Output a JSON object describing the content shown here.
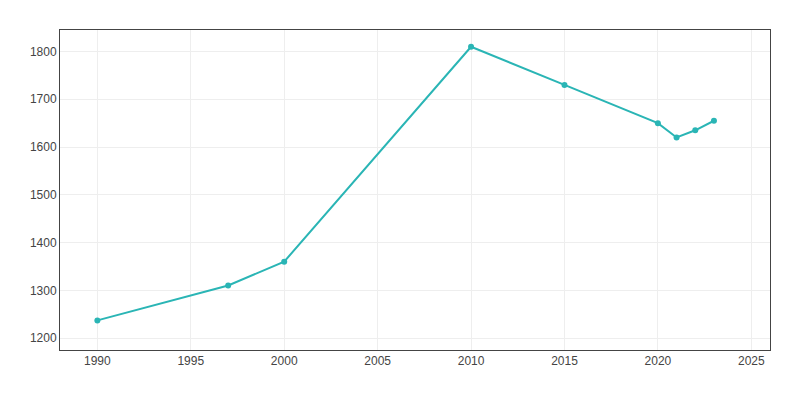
{
  "chart_data": {
    "type": "line",
    "x": [
      1990,
      1997,
      2000,
      2010,
      2015,
      2020,
      2021,
      2022,
      2023
    ],
    "values": [
      1237,
      1310,
      1360,
      1810,
      1730,
      1650,
      1620,
      1635,
      1655
    ],
    "color": "#2ab5b5",
    "marker": "circle",
    "xlim": [
      1988,
      2026
    ],
    "ylim": [
      1175,
      1845
    ],
    "xticks": [
      1990,
      1995,
      2000,
      2005,
      2010,
      2015,
      2020,
      2025
    ],
    "yticks": [
      1200,
      1300,
      1400,
      1500,
      1600,
      1700,
      1800
    ],
    "grid": true
  }
}
